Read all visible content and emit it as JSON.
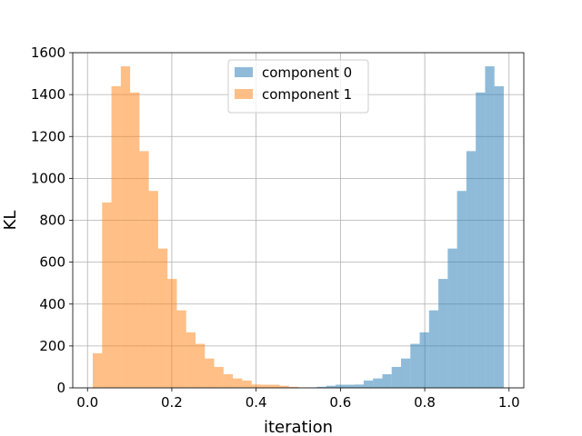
{
  "chart_data": {
    "type": "histogram",
    "title": "",
    "xlabel": "iteration",
    "ylabel": "KL",
    "xlim": [
      -0.035,
      1.035
    ],
    "ylim": [
      0,
      1600
    ],
    "xticks": [
      0.0,
      0.2,
      0.4,
      0.6,
      0.8,
      1.0
    ],
    "xtick_labels": [
      "0.0",
      "0.2",
      "0.4",
      "0.6",
      "0.8",
      "1.0"
    ],
    "yticks": [
      0,
      200,
      400,
      600,
      800,
      1000,
      1200,
      1400,
      1600
    ],
    "ytick_labels": [
      "0",
      "200",
      "400",
      "600",
      "800",
      "1000",
      "1200",
      "1400",
      "1600"
    ],
    "grid": true,
    "legend_position": "top-center",
    "bin_edges_range": [
      0.0125,
      0.9875
    ],
    "bin_count": 44,
    "series": [
      {
        "name": "component 0",
        "color": "#1f77b4",
        "alpha": 0.5,
        "values": [
          0,
          0,
          0,
          0,
          0,
          0,
          0,
          0,
          0,
          0,
          0,
          0,
          0,
          0,
          0,
          0,
          0,
          0,
          0,
          0,
          0,
          0,
          0,
          2,
          5,
          10,
          15,
          15,
          16,
          35,
          45,
          65,
          100,
          140,
          210,
          265,
          370,
          520,
          665,
          940,
          1130,
          1410,
          1535,
          1440
        ]
      },
      {
        "name": "component 1",
        "color": "#ff7f0e",
        "alpha": 0.5,
        "values": [
          165,
          885,
          1440,
          1535,
          1410,
          1130,
          940,
          665,
          520,
          370,
          265,
          210,
          140,
          100,
          65,
          45,
          35,
          16,
          15,
          15,
          10,
          5,
          2,
          0,
          0,
          0,
          0,
          0,
          0,
          0,
          0,
          0,
          0,
          0,
          0,
          0,
          0,
          0,
          0,
          0,
          0,
          0,
          0,
          0
        ]
      }
    ]
  }
}
